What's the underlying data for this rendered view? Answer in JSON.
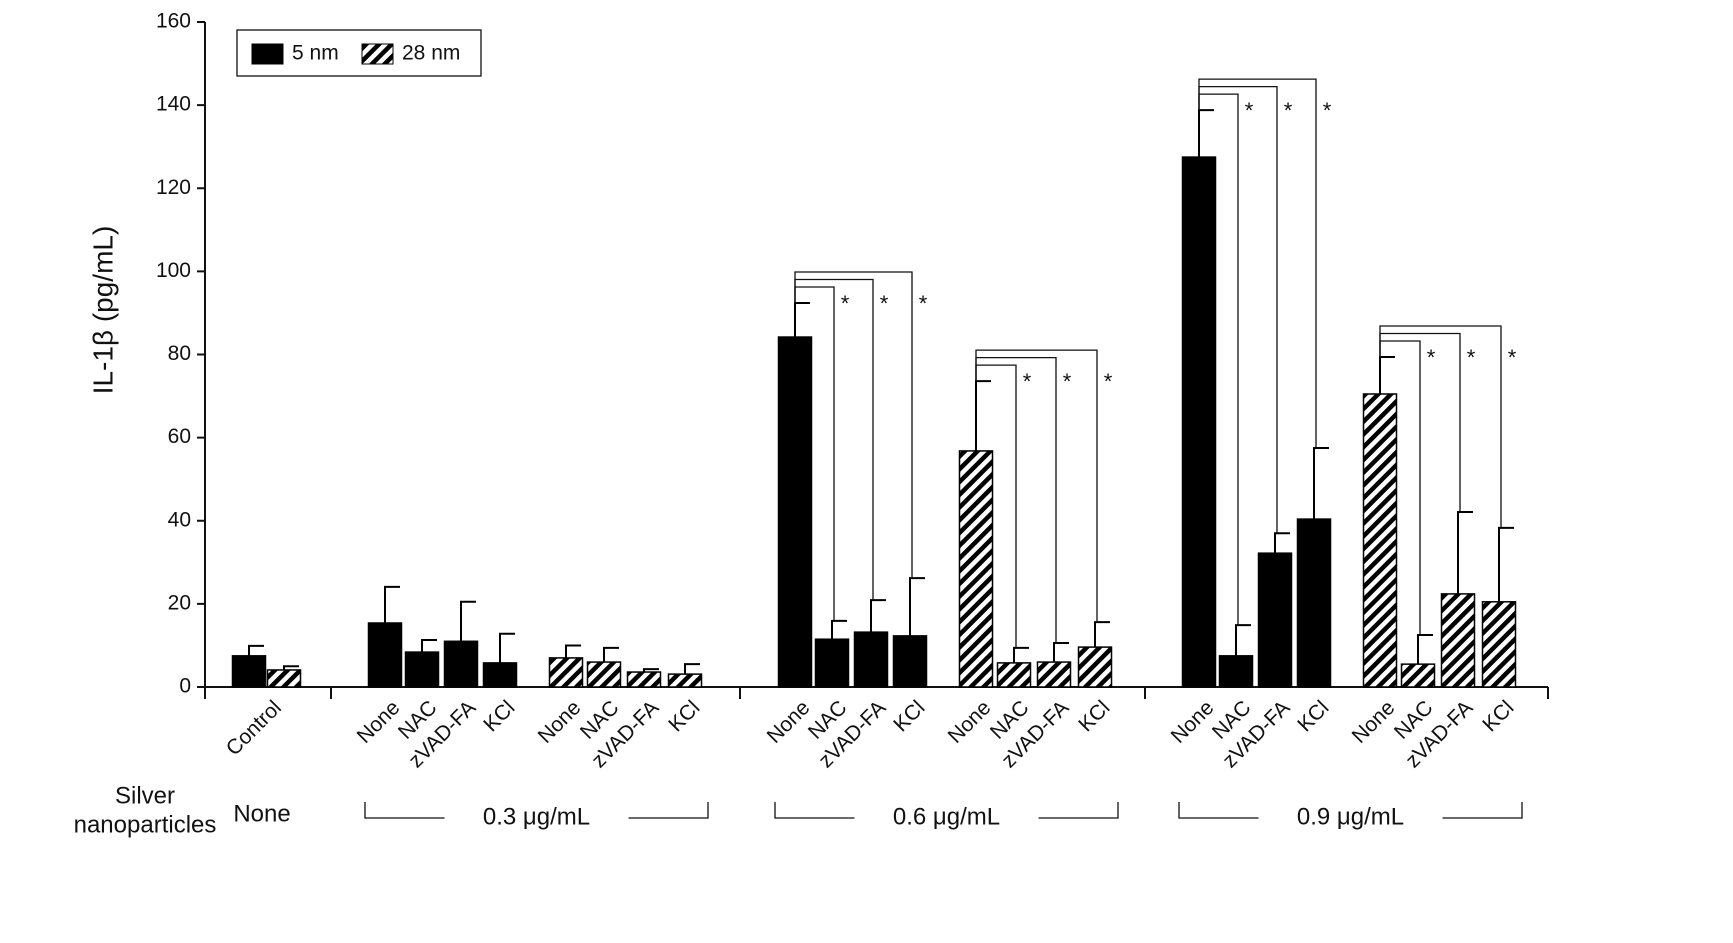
{
  "chart_data": {
    "type": "bar",
    "ylabel": "IL-1β (pg/mL)",
    "ylim": [
      0,
      160
    ],
    "yticks": [
      0,
      20,
      40,
      60,
      80,
      100,
      120,
      140,
      160
    ],
    "grid": false,
    "legend": "upper left",
    "categories": [
      "Control",
      null,
      "None",
      "NAC",
      "zVAD-FA",
      "KCl",
      "None",
      "NAC",
      "zVAD-FA",
      "KCl",
      "None",
      "NAC",
      "zVAD-FA",
      "KCl",
      "None",
      "NAC",
      "zVAD-FA",
      "KCl",
      "None",
      "NAC",
      "zVAD-FA",
      "KCl",
      "None",
      "NAC",
      "zVAD-FA",
      "KCl"
    ],
    "series": [
      {
        "name": "5 nm",
        "color": "#000000",
        "values": [
          7.5,
          null,
          15.4,
          8.4,
          11.0,
          5.8,
          null,
          null,
          null,
          null,
          84.2,
          11.5,
          13.2,
          12.3,
          null,
          null,
          null,
          null,
          127.5,
          7.5,
          32.2,
          40.4,
          null,
          null,
          null,
          null
        ],
        "errors": [
          2.4,
          null,
          8.7,
          2.9,
          9.5,
          7.0,
          null,
          null,
          null,
          null,
          8.2,
          4.4,
          7.7,
          13.9,
          null,
          null,
          null,
          null,
          11.3,
          7.4,
          4.8,
          17.1,
          null,
          null,
          null,
          null
        ]
      },
      {
        "name": "28 nm",
        "color": "#000000",
        "pattern": "diagonal",
        "values": [
          null,
          4.1,
          null,
          null,
          null,
          null,
          7.0,
          6.0,
          3.6,
          3.1,
          null,
          null,
          null,
          null,
          56.8,
          5.8,
          6.0,
          9.6,
          null,
          null,
          null,
          null,
          70.5,
          5.5,
          22.4,
          20.5
        ],
        "errors": [
          null,
          0.9,
          null,
          null,
          null,
          null,
          3.0,
          3.4,
          0.7,
          2.4,
          null,
          null,
          null,
          null,
          16.8,
          3.6,
          4.6,
          6.0,
          null,
          null,
          null,
          null,
          8.9,
          7.0,
          19.7,
          17.8
        ]
      }
    ],
    "annotations": [
      null,
      null,
      null,
      null,
      null,
      null,
      null,
      null,
      null,
      null,
      null,
      "*",
      "*",
      "*",
      null,
      "*",
      "*",
      "*",
      null,
      "*",
      "*",
      "*",
      null,
      "*",
      "*",
      "*"
    ],
    "group_title": [
      "Silver",
      "nanoparticles"
    ],
    "groups": [
      "None",
      "0.3 μg/mL",
      "0.6 μg/mL",
      "0.9 μg/mL"
    ]
  }
}
